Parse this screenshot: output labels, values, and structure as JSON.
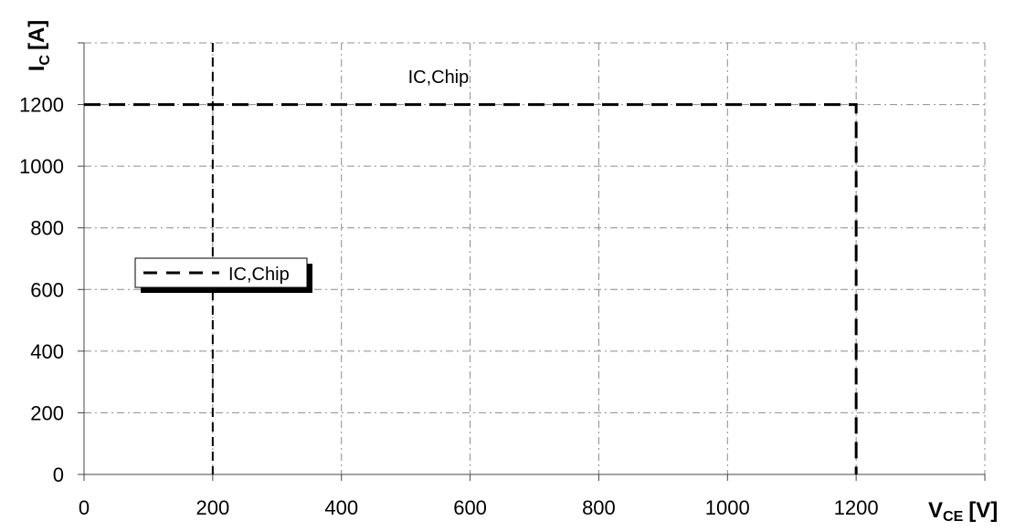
{
  "chart_data": {
    "type": "line",
    "title": "",
    "ylabel": {
      "main": "I",
      "sub": "C",
      "unit": "[A]"
    },
    "xlabel": {
      "main": "V",
      "sub": "CE",
      "unit": "[V]"
    },
    "x_ticks": [
      0,
      200,
      400,
      600,
      800,
      1000,
      1200
    ],
    "y_ticks": [
      0,
      200,
      400,
      600,
      800,
      1000,
      1200
    ],
    "xlim": [
      0,
      1400
    ],
    "ylim": [
      0,
      1400
    ],
    "grid": true,
    "legend_position": "middle-left",
    "series": [
      {
        "name": "IC,Chip",
        "style": "dashed",
        "color": "#000000",
        "points": [
          {
            "x": 0,
            "y": 1200
          },
          {
            "x": 1200,
            "y": 1200
          },
          {
            "x": 1200,
            "y": 0
          }
        ]
      }
    ],
    "reference_lines": [
      {
        "axis": "x",
        "value": 200,
        "style": "dashed"
      }
    ],
    "annotations": [
      {
        "text": "IC,Chip",
        "x": 600,
        "y": 1290
      }
    ]
  }
}
